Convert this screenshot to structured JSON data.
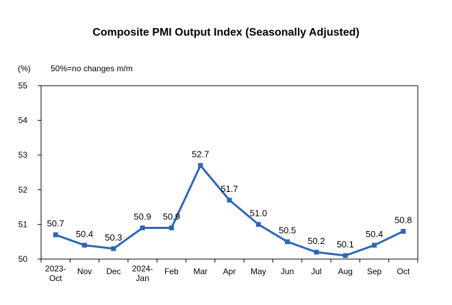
{
  "chart_data": {
    "type": "line",
    "title": "Composite PMI Output Index (Seasonally Adjusted)",
    "y_unit": "(%)",
    "note": "50%=no changes m/m",
    "categories": [
      [
        "2023-",
        "Oct"
      ],
      [
        "Nov"
      ],
      [
        "Dec"
      ],
      [
        "2024-",
        "Jan"
      ],
      [
        "Feb"
      ],
      [
        "Mar"
      ],
      [
        "Apr"
      ],
      [
        "May"
      ],
      [
        "Jun"
      ],
      [
        "Jul"
      ],
      [
        "Aug"
      ],
      [
        "Sep"
      ],
      [
        "Oct"
      ]
    ],
    "series": [
      {
        "values": [
          50.7,
          50.4,
          50.3,
          50.9,
          50.9,
          52.7,
          51.7,
          51.0,
          50.5,
          50.2,
          50.1,
          50.4,
          50.8
        ],
        "labels": [
          "50.7",
          "50.4",
          "50.3",
          "50.9",
          "50.9",
          "52.7",
          "51.7",
          "51.0",
          "50.5",
          "50.2",
          "50.1",
          "50.4",
          "50.8"
        ],
        "color": "#2e66b5"
      }
    ],
    "ylim": [
      50,
      55
    ],
    "yticks": [
      50,
      51,
      52,
      53,
      54,
      55
    ],
    "grid": false,
    "legend": "none"
  }
}
